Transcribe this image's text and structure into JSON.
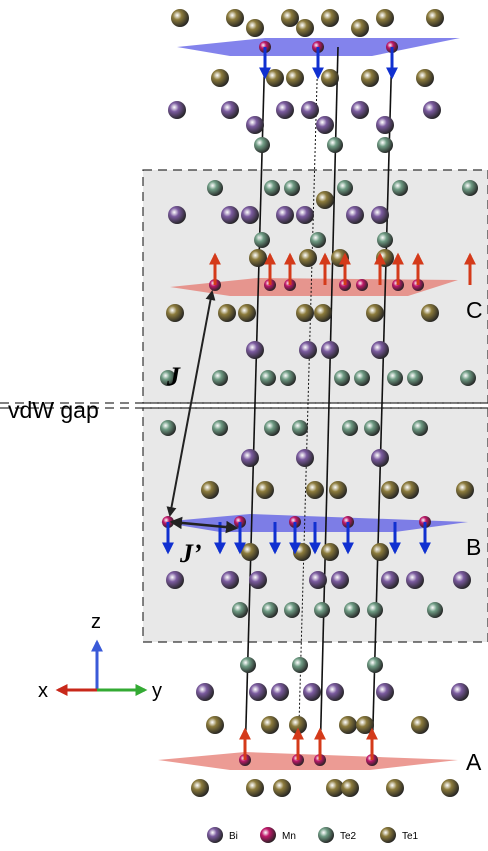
{
  "labels": {
    "vdw_gap": "vdW gap",
    "j": "J",
    "j_prime": "J’",
    "layer_c": "C",
    "layer_b": "B",
    "layer_a": "A"
  },
  "axes": {
    "z": "z",
    "x": "x",
    "y": "y"
  },
  "legend": [
    {
      "label": "Bi",
      "color": "#7b5b9f"
    },
    {
      "label": "Mn",
      "color": "#c0186a"
    },
    {
      "label": "Te2",
      "color": "#6f9c84"
    },
    {
      "label": "Te1",
      "color": "#8c7b3c"
    }
  ]
}
